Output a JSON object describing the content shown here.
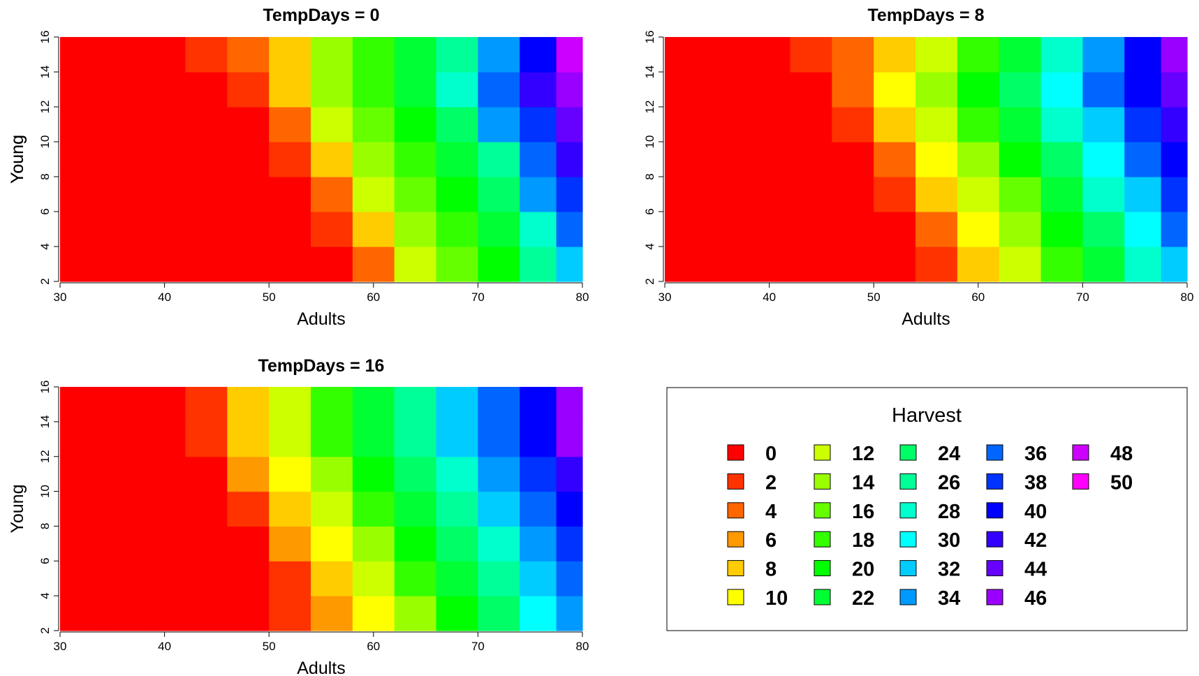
{
  "chart_data": [
    {
      "type": "heatmap",
      "title": "TempDays = 0",
      "xlabel": "Adults",
      "ylabel": "Young",
      "xlim": [
        30,
        80
      ],
      "ylim": [
        2,
        16
      ],
      "xticks": [
        30,
        40,
        50,
        60,
        70,
        80
      ],
      "yticks": [
        2,
        4,
        6,
        8,
        10,
        12,
        14,
        16
      ],
      "x_centers": [
        32,
        36,
        40,
        44,
        48,
        52,
        56,
        60,
        64,
        68,
        72,
        76,
        79
      ],
      "y_centers": [
        3,
        5,
        7,
        9,
        11,
        13,
        15
      ],
      "z": [
        [
          0,
          0,
          0,
          0,
          0,
          0,
          0,
          4,
          12,
          16,
          20,
          26,
          32
        ],
        [
          0,
          0,
          0,
          0,
          0,
          0,
          2,
          8,
          14,
          18,
          22,
          28,
          36
        ],
        [
          0,
          0,
          0,
          0,
          0,
          0,
          4,
          12,
          16,
          20,
          24,
          34,
          38
        ],
        [
          0,
          0,
          0,
          0,
          0,
          2,
          8,
          14,
          18,
          22,
          26,
          36,
          42
        ],
        [
          0,
          0,
          0,
          0,
          0,
          4,
          12,
          16,
          20,
          24,
          34,
          38,
          44
        ],
        [
          0,
          0,
          0,
          0,
          2,
          8,
          14,
          18,
          22,
          28,
          36,
          42,
          46
        ],
        [
          0,
          0,
          0,
          2,
          4,
          8,
          14,
          18,
          22,
          26,
          34,
          40,
          48
        ]
      ]
    },
    {
      "type": "heatmap",
      "title": "TempDays = 8",
      "xlabel": "Adults",
      "ylabel": "Young",
      "xlim": [
        30,
        80
      ],
      "ylim": [
        2,
        16
      ],
      "xticks": [
        30,
        40,
        50,
        60,
        70,
        80
      ],
      "yticks": [
        2,
        4,
        6,
        8,
        10,
        12,
        14,
        16
      ],
      "x_centers": [
        32,
        36,
        40,
        44,
        48,
        52,
        56,
        60,
        64,
        68,
        72,
        76,
        79
      ],
      "y_centers": [
        3,
        5,
        7,
        9,
        11,
        13,
        15
      ],
      "z": [
        [
          0,
          0,
          0,
          0,
          0,
          0,
          2,
          8,
          12,
          18,
          22,
          28,
          32
        ],
        [
          0,
          0,
          0,
          0,
          0,
          0,
          4,
          10,
          14,
          20,
          24,
          30,
          36
        ],
        [
          0,
          0,
          0,
          0,
          0,
          2,
          8,
          12,
          16,
          22,
          28,
          32,
          38
        ],
        [
          0,
          0,
          0,
          0,
          0,
          4,
          10,
          14,
          20,
          24,
          30,
          36,
          40
        ],
        [
          0,
          0,
          0,
          0,
          2,
          8,
          12,
          18,
          22,
          28,
          32,
          38,
          42
        ],
        [
          0,
          0,
          0,
          0,
          4,
          10,
          14,
          20,
          24,
          30,
          36,
          40,
          44
        ],
        [
          0,
          0,
          0,
          2,
          4,
          8,
          12,
          18,
          22,
          28,
          34,
          40,
          46
        ]
      ]
    },
    {
      "type": "heatmap",
      "title": "TempDays = 16",
      "xlabel": "Adults",
      "ylabel": "Young",
      "xlim": [
        30,
        80
      ],
      "ylim": [
        2,
        16
      ],
      "xticks": [
        30,
        40,
        50,
        60,
        70,
        80
      ],
      "yticks": [
        2,
        4,
        6,
        8,
        10,
        12,
        14,
        16
      ],
      "x_centers": [
        32,
        36,
        40,
        44,
        48,
        52,
        56,
        60,
        64,
        68,
        72,
        76,
        79
      ],
      "y_centers": [
        3,
        5,
        7,
        9,
        11,
        13,
        15
      ],
      "z": [
        [
          0,
          0,
          0,
          0,
          0,
          2,
          6,
          10,
          14,
          20,
          24,
          30,
          34
        ],
        [
          0,
          0,
          0,
          0,
          0,
          2,
          8,
          12,
          18,
          22,
          26,
          32,
          36
        ],
        [
          0,
          0,
          0,
          0,
          0,
          6,
          10,
          14,
          20,
          24,
          28,
          34,
          38
        ],
        [
          0,
          0,
          0,
          0,
          2,
          8,
          12,
          18,
          22,
          26,
          32,
          36,
          40
        ],
        [
          0,
          0,
          0,
          0,
          6,
          10,
          14,
          20,
          24,
          28,
          34,
          38,
          42
        ],
        [
          0,
          0,
          0,
          2,
          8,
          12,
          18,
          22,
          26,
          32,
          36,
          40,
          46
        ],
        [
          0,
          0,
          0,
          2,
          8,
          12,
          18,
          22,
          26,
          32,
          36,
          40,
          46
        ]
      ]
    }
  ],
  "legend": {
    "title": "Harvest",
    "levels": [
      0,
      2,
      4,
      6,
      8,
      10,
      12,
      14,
      16,
      18,
      20,
      22,
      24,
      26,
      28,
      30,
      32,
      34,
      36,
      38,
      40,
      42,
      44,
      46,
      48,
      50
    ],
    "colors": [
      "#FF0000",
      "#FF3300",
      "#FF6600",
      "#FF9900",
      "#FFCC00",
      "#FFFF00",
      "#CCFF00",
      "#99FF00",
      "#66FF00",
      "#33FF00",
      "#00FF00",
      "#00FF33",
      "#00FF66",
      "#00FF99",
      "#00FFCC",
      "#00FFFF",
      "#00CCFF",
      "#0099FF",
      "#0066FF",
      "#0033FF",
      "#0000FF",
      "#3300FF",
      "#6600FF",
      "#9900FF",
      "#CC00FF",
      "#FF00FF"
    ],
    "columns": 5,
    "rows": 6
  }
}
